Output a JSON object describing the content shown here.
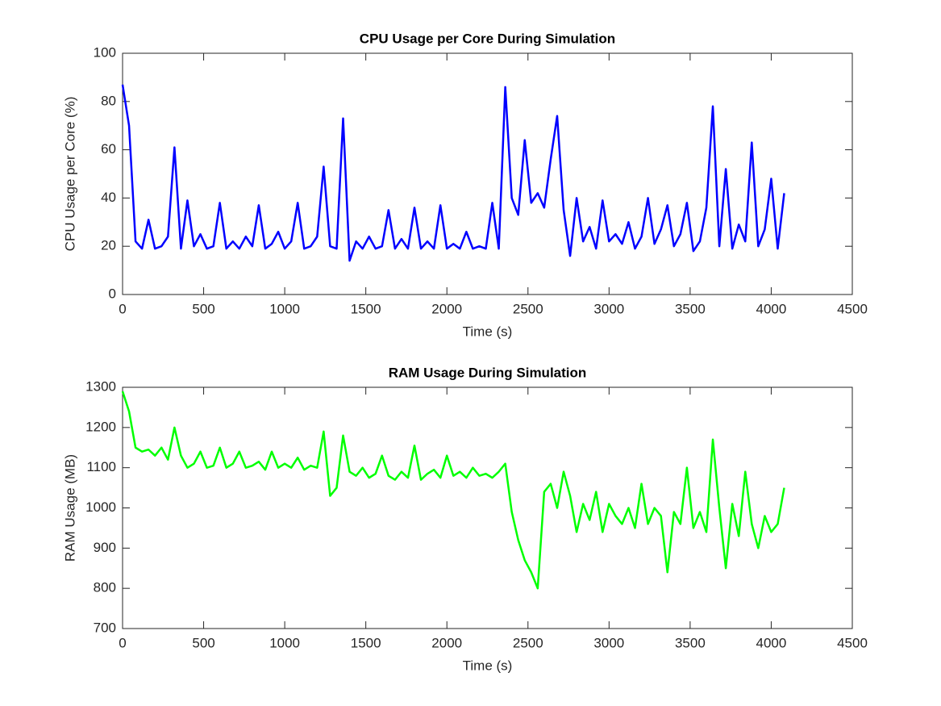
{
  "chart_data": [
    {
      "type": "line",
      "title": "CPU Usage per Core During Simulation",
      "x_label": "Time (s)",
      "y_label": "CPU Usage per Core (%)",
      "xlim": [
        0,
        4500
      ],
      "xticks": [
        0,
        500,
        1000,
        1500,
        2000,
        2500,
        3000,
        3500,
        4000,
        4500
      ],
      "ylim": [
        0,
        100
      ],
      "yticks": [
        0,
        20,
        40,
        60,
        80,
        100
      ],
      "grid": false,
      "x": [
        0,
        40,
        80,
        120,
        160,
        200,
        240,
        280,
        320,
        360,
        400,
        440,
        480,
        520,
        560,
        600,
        640,
        680,
        720,
        760,
        800,
        840,
        880,
        920,
        960,
        1000,
        1040,
        1080,
        1120,
        1160,
        1200,
        1240,
        1280,
        1320,
        1360,
        1400,
        1440,
        1480,
        1520,
        1560,
        1600,
        1640,
        1680,
        1720,
        1760,
        1800,
        1840,
        1880,
        1920,
        1960,
        2000,
        2040,
        2080,
        2120,
        2160,
        2200,
        2240,
        2280,
        2320,
        2360,
        2400,
        2440,
        2480,
        2520,
        2560,
        2600,
        2640,
        2680,
        2720,
        2760,
        2800,
        2840,
        2880,
        2920,
        2960,
        3000,
        3040,
        3080,
        3120,
        3160,
        3200,
        3240,
        3280,
        3320,
        3360,
        3400,
        3440,
        3480,
        3520,
        3560,
        3600,
        3640,
        3680,
        3720,
        3760,
        3800,
        3840,
        3880,
        3920,
        3960,
        4000,
        4040,
        4080
      ],
      "series": [
        {
          "color": "#0000ff",
          "values": [
            87,
            70,
            22,
            19,
            31,
            19,
            20,
            24,
            61,
            19,
            39,
            20,
            25,
            19,
            20,
            38,
            19,
            22,
            19,
            24,
            20,
            37,
            19,
            21,
            26,
            19,
            22,
            38,
            19,
            20,
            24,
            53,
            20,
            19,
            73,
            14,
            22,
            19,
            24,
            19,
            20,
            35,
            19,
            23,
            19,
            36,
            19,
            22,
            19,
            37,
            19,
            21,
            19,
            26,
            19,
            20,
            19,
            38,
            19,
            86,
            40,
            33,
            64,
            38,
            42,
            36,
            56,
            74,
            35,
            16,
            40,
            22,
            28,
            19,
            39,
            22,
            25,
            21,
            30,
            19,
            24,
            40,
            21,
            27,
            37,
            20,
            25,
            38,
            18,
            22,
            36,
            78,
            20,
            52,
            19,
            29,
            22,
            63,
            20,
            27,
            48,
            19,
            42
          ]
        }
      ]
    },
    {
      "type": "line",
      "title": "RAM Usage During Simulation",
      "x_label": "Time (s)",
      "y_label": "RAM Usage (MB)",
      "xlim": [
        0,
        4500
      ],
      "xticks": [
        0,
        500,
        1000,
        1500,
        2000,
        2500,
        3000,
        3500,
        4000,
        4500
      ],
      "ylim": [
        700,
        1300
      ],
      "yticks": [
        700,
        800,
        900,
        1000,
        1100,
        1200,
        1300
      ],
      "grid": false,
      "x": [
        0,
        40,
        80,
        120,
        160,
        200,
        240,
        280,
        320,
        360,
        400,
        440,
        480,
        520,
        560,
        600,
        640,
        680,
        720,
        760,
        800,
        840,
        880,
        920,
        960,
        1000,
        1040,
        1080,
        1120,
        1160,
        1200,
        1240,
        1280,
        1320,
        1360,
        1400,
        1440,
        1480,
        1520,
        1560,
        1600,
        1640,
        1680,
        1720,
        1760,
        1800,
        1840,
        1880,
        1920,
        1960,
        2000,
        2040,
        2080,
        2120,
        2160,
        2200,
        2240,
        2280,
        2320,
        2360,
        2400,
        2440,
        2480,
        2520,
        2560,
        2600,
        2640,
        2680,
        2720,
        2760,
        2800,
        2840,
        2880,
        2920,
        2960,
        3000,
        3040,
        3080,
        3120,
        3160,
        3200,
        3240,
        3280,
        3320,
        3360,
        3400,
        3440,
        3480,
        3520,
        3560,
        3600,
        3640,
        3680,
        3720,
        3760,
        3800,
        3840,
        3880,
        3920,
        3960,
        4000,
        4040,
        4080
      ],
      "series": [
        {
          "color": "#00ff00",
          "values": [
            1290,
            1240,
            1150,
            1140,
            1145,
            1130,
            1150,
            1120,
            1200,
            1130,
            1100,
            1110,
            1140,
            1100,
            1105,
            1150,
            1100,
            1110,
            1140,
            1100,
            1105,
            1115,
            1095,
            1140,
            1100,
            1110,
            1100,
            1125,
            1095,
            1105,
            1100,
            1190,
            1030,
            1050,
            1180,
            1090,
            1080,
            1100,
            1075,
            1085,
            1130,
            1080,
            1070,
            1090,
            1075,
            1155,
            1070,
            1085,
            1095,
            1075,
            1130,
            1080,
            1090,
            1075,
            1100,
            1080,
            1085,
            1075,
            1090,
            1110,
            990,
            920,
            870,
            840,
            800,
            1040,
            1060,
            1000,
            1090,
            1030,
            940,
            1010,
            970,
            1040,
            940,
            1010,
            980,
            960,
            1000,
            950,
            1060,
            960,
            1000,
            980,
            840,
            990,
            960,
            1100,
            950,
            990,
            940,
            1170,
            1000,
            850,
            1010,
            930,
            1090,
            960,
            900,
            980,
            940,
            960,
            1050
          ]
        }
      ]
    }
  ]
}
